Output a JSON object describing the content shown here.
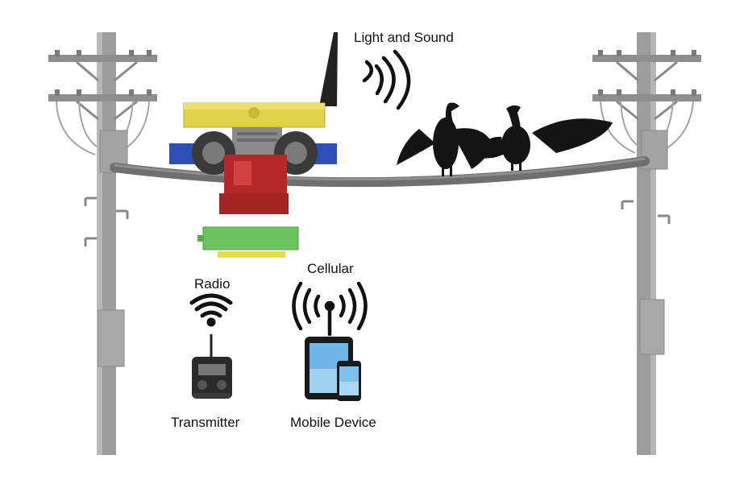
{
  "labels": {
    "light_and_sound": "Light and Sound",
    "radio": "Radio",
    "transmitter": "Transmitter",
    "cellular": "Cellular",
    "mobile_device": "Mobile Device"
  },
  "colors": {
    "pole": "#9a9a9a",
    "wire": "#6f6f6f",
    "robot_top": "#e0d24a",
    "robot_side": "#2f4fb8",
    "robot_body": "#b52a28",
    "battery": "#6cc35e",
    "battery_strip": "#e8d94a",
    "bird": "#141414",
    "icons": "#111111"
  },
  "icons": [
    "utility-pole-left",
    "utility-pole-right",
    "power-line",
    "line-robot",
    "battery-pack",
    "cormorant-birds",
    "sound-waves-icon",
    "radio-wifi-icon",
    "radio-transmitter-icon",
    "cellular-antenna-icon",
    "mobile-devices-icon"
  ]
}
